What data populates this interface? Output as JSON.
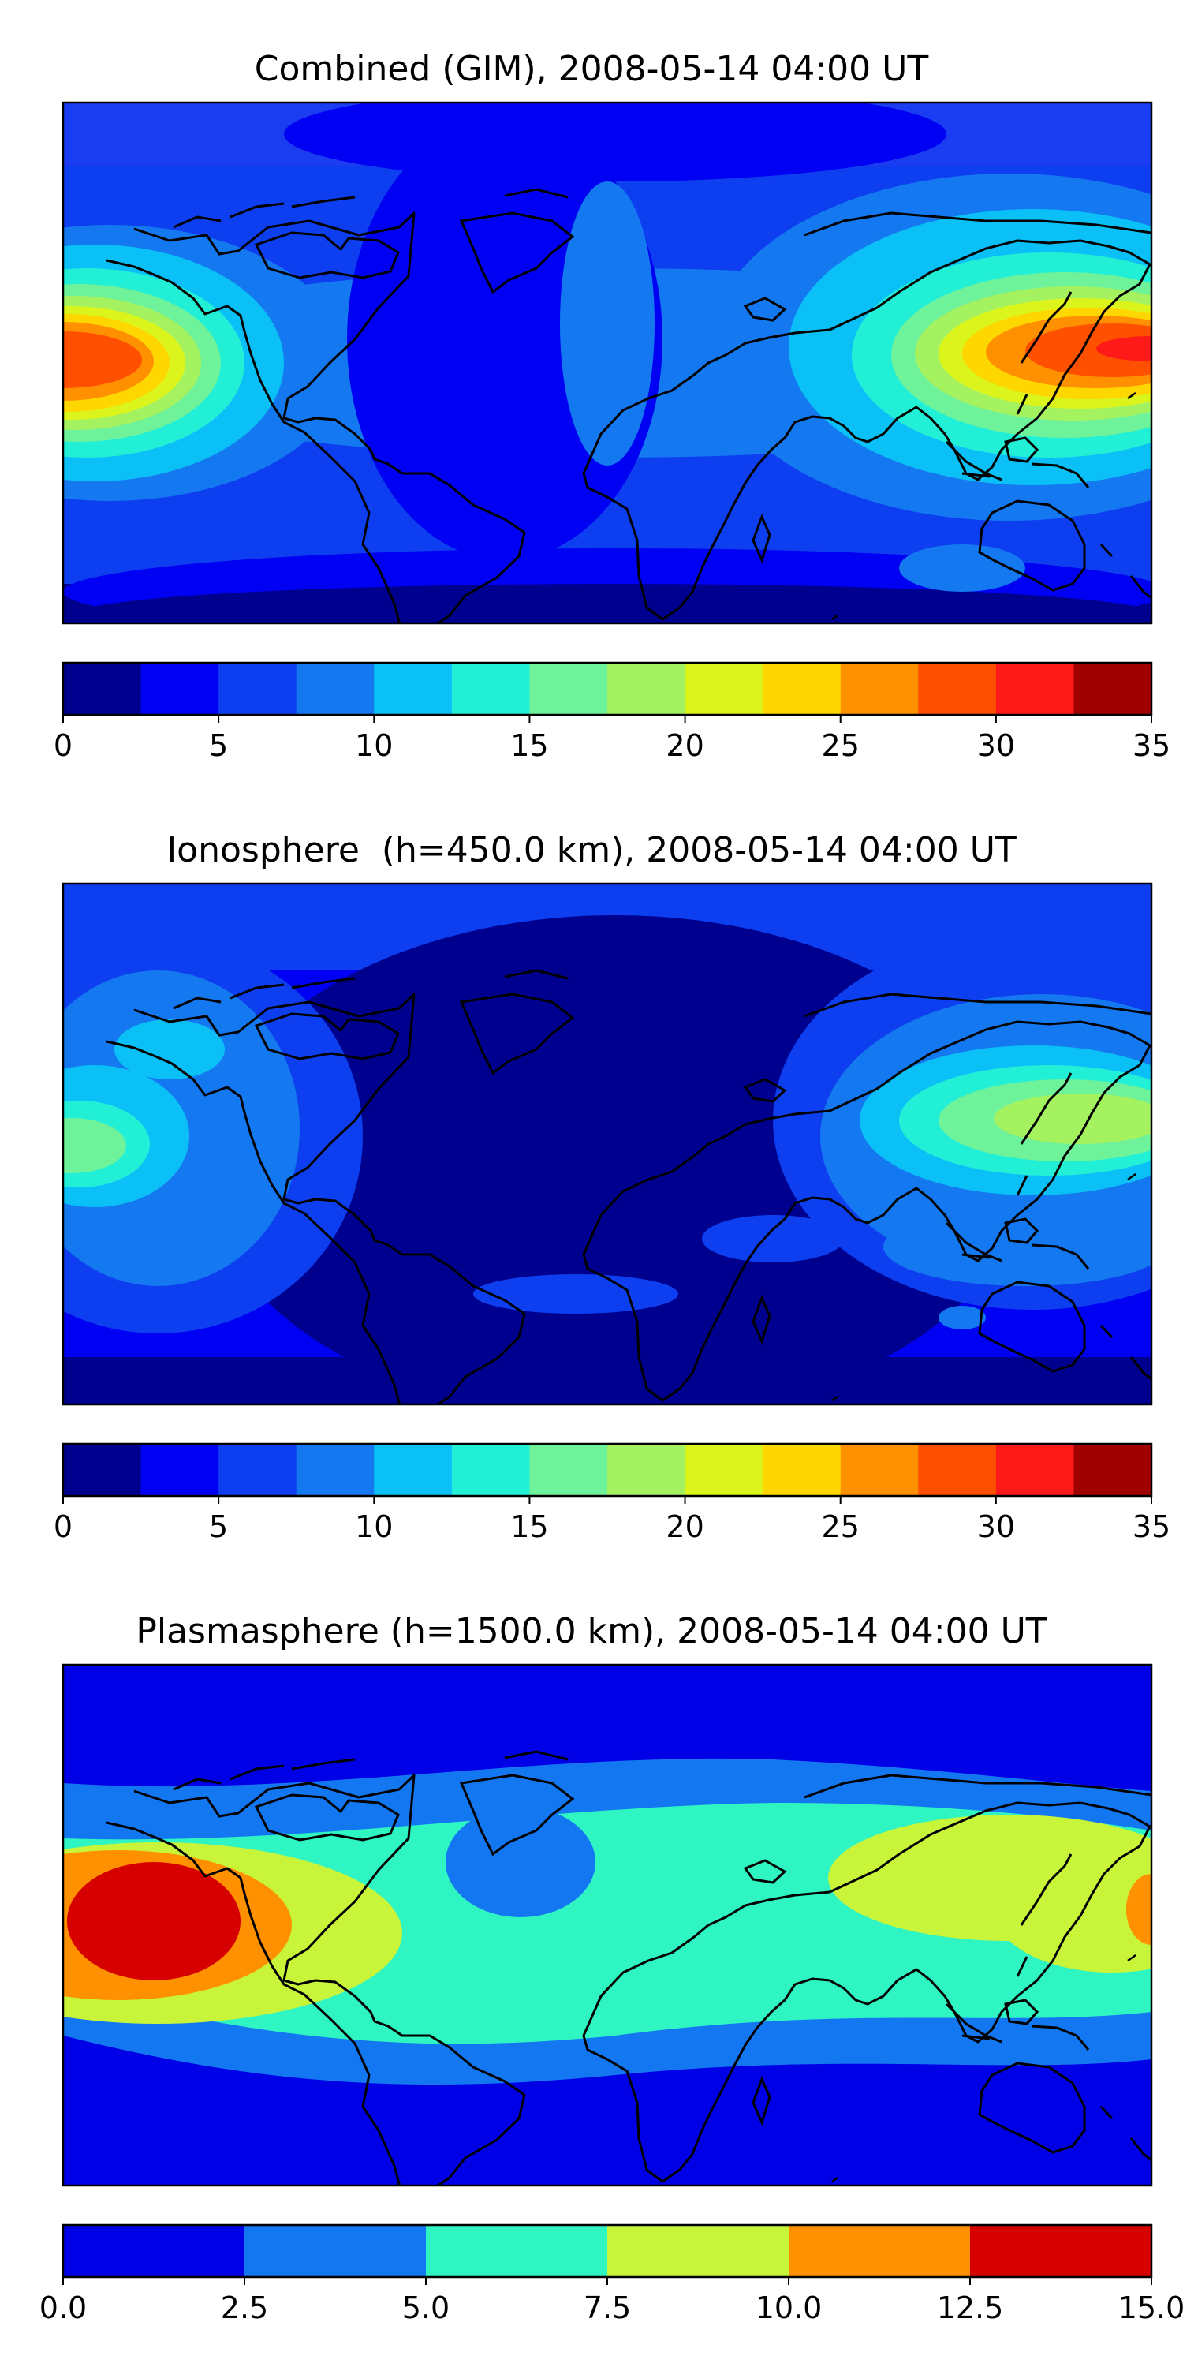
{
  "panels": [
    {
      "title": "Combined (GIM), 2008-05-14 04:00 UT"
    },
    {
      "title": "Ionosphere  (h=450.0 km), 2008-05-14 04:00 UT"
    },
    {
      "title": "Plasmasphere (h=1500.0 km), 2008-05-14 04:00 UT"
    }
  ],
  "chart_data": [
    {
      "type": "heatmap",
      "title": "Combined (GIM), 2008-05-14 04:00 UT",
      "map": "world, equirectangular projection with coastlines",
      "levels": [
        0,
        2.5,
        5,
        7.5,
        10,
        12.5,
        15,
        17.5,
        20,
        22.5,
        25,
        27.5,
        30,
        32.5,
        35
      ],
      "colors": [
        "#00008f",
        "#0000f2",
        "#0d3ff0",
        "#1478f0",
        "#0bc0f6",
        "#22f0d6",
        "#6ef29a",
        "#a5f260",
        "#dbf51c",
        "#ffd700",
        "#ff9000",
        "#ff5000",
        "#ff1a1a",
        "#a00000"
      ],
      "colorbar_ticks": [
        "0",
        "5",
        "10",
        "15",
        "20",
        "25",
        "30",
        "35"
      ],
      "colorbar_range": [
        0,
        35
      ],
      "features": [
        {
          "region": "central Pacific",
          "value": 30
        },
        {
          "region": "Southeast Asia / Maritime Continent",
          "value": 30
        },
        {
          "region": "polar regions",
          "value": 2.5
        }
      ]
    },
    {
      "type": "heatmap",
      "title": "Ionosphere  (h=450.0 km), 2008-05-14 04:00 UT",
      "map": "world, equirectangular projection with coastlines",
      "levels": [
        0,
        2.5,
        5,
        7.5,
        10,
        12.5,
        15,
        17.5,
        20,
        22.5,
        25,
        27.5,
        30,
        32.5,
        35
      ],
      "colors": [
        "#00008f",
        "#0000f2",
        "#0d3ff0",
        "#1478f0",
        "#0bc0f6",
        "#22f0d6",
        "#6ef29a",
        "#a5f260",
        "#dbf51c",
        "#ffd700",
        "#ff9000",
        "#ff5000",
        "#ff1a1a",
        "#a00000"
      ],
      "colorbar_ticks": [
        "0",
        "5",
        "10",
        "15",
        "20",
        "25",
        "30",
        "35"
      ],
      "colorbar_range": [
        0,
        35
      ],
      "features": [
        {
          "region": "Southeast Asia / Maritime Continent",
          "value": 20
        },
        {
          "region": "eastern Pacific",
          "value": 17.5
        },
        {
          "region": "Atlantic / Americas",
          "value": 2.5
        }
      ]
    },
    {
      "type": "heatmap",
      "title": "Plasmasphere (h=1500.0 km), 2008-05-14 04:00 UT",
      "map": "world, equirectangular projection with coastlines",
      "levels": [
        0,
        2.5,
        5,
        7.5,
        10,
        12.5,
        15
      ],
      "colors": [
        "#0000e6",
        "#1477f2",
        "#2ef5c2",
        "#c8f53a",
        "#ff9000",
        "#d60000"
      ],
      "colorbar_ticks": [
        "0.0",
        "2.5",
        "5.0",
        "7.5",
        "10.0",
        "12.5",
        "15.0"
      ],
      "colorbar_range": [
        0,
        15
      ],
      "features": [
        {
          "region": "central Pacific",
          "value": 13
        },
        {
          "region": "tropical belt",
          "value": 7.5
        },
        {
          "region": "high latitudes",
          "value": 2.5
        }
      ]
    }
  ]
}
